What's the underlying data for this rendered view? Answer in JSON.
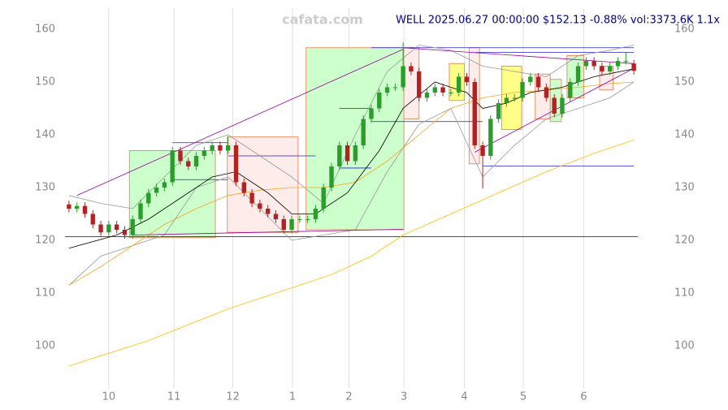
{
  "chart_data": {
    "type": "candlestick",
    "title": "WELL 2025.06.27 00:00:00 $152.13 -0.88% vol:3373.6K 1.1x",
    "watermark": "cafata.com",
    "up_color": "#2a9d2a",
    "down_color": "#b22222",
    "grid": true,
    "xlim": [
      -0.5,
      71.5
    ],
    "xticks": [
      {
        "value": 5.0,
        "label": "10"
      },
      {
        "value": 13.2,
        "label": "11"
      },
      {
        "value": 20.6,
        "label": "12"
      },
      {
        "value": 28.1,
        "label": "1"
      },
      {
        "value": 35.2,
        "label": "2"
      },
      {
        "value": 42.1,
        "label": "3"
      },
      {
        "value": 49.7,
        "label": "4"
      },
      {
        "value": 57.1,
        "label": "5"
      },
      {
        "value": 64.7,
        "label": "6"
      }
    ],
    "ylim": [
      92,
      164
    ],
    "yticks": [
      100,
      110,
      120,
      130,
      140,
      150,
      160
    ],
    "open": [
      126.8,
      126,
      126.5,
      125,
      123,
      121.5,
      123,
      122,
      121,
      124,
      127,
      129,
      130,
      131,
      137,
      135,
      134,
      136,
      137,
      138,
      137,
      138,
      131,
      129,
      127,
      126,
      125,
      124,
      122,
      124,
      124,
      124,
      126,
      130,
      134,
      138,
      135,
      138,
      143,
      145,
      148,
      149,
      149,
      153,
      152,
      147,
      148,
      149,
      148,
      148,
      151,
      150,
      138,
      136,
      143,
      146,
      147,
      147,
      150,
      151,
      149,
      147,
      144,
      147,
      150,
      153,
      154,
      153,
      152,
      153,
      154,
      153.5
    ],
    "high": [
      127.5,
      127.2,
      127.2,
      125.7,
      123.7,
      123.7,
      123.7,
      122.7,
      124.7,
      127.7,
      129.7,
      130.7,
      131.7,
      137.7,
      137.7,
      135.7,
      136.7,
      137.7,
      138.7,
      138.7,
      139.7,
      138.7,
      131.7,
      129.7,
      127.7,
      126.7,
      125.7,
      124.7,
      124.7,
      124.7,
      124.7,
      126.7,
      130.7,
      134.7,
      138.7,
      138.7,
      138.7,
      143.7,
      145.7,
      148.7,
      149.7,
      149.7,
      157.5,
      153.7,
      152.7,
      148.7,
      149.7,
      149.7,
      148.7,
      151.7,
      151.7,
      150.7,
      138.7,
      143.7,
      146.7,
      147.7,
      147.7,
      150.7,
      151.7,
      151.7,
      149.7,
      147.7,
      147.7,
      150.7,
      153.7,
      154.7,
      154.7,
      153.7,
      153.7,
      154.7,
      155.7,
      154.2
    ],
    "low": [
      125.3,
      125.3,
      124.3,
      122.3,
      120.8,
      120.8,
      121.3,
      120.3,
      120.3,
      123.3,
      126.3,
      128.3,
      129.3,
      130.3,
      134.3,
      133.3,
      133.3,
      135.3,
      136.3,
      136.3,
      136.3,
      130.3,
      128.3,
      126.3,
      125.3,
      124.3,
      123.3,
      121.3,
      121.3,
      123.3,
      123.3,
      123.3,
      125.3,
      129.3,
      133.3,
      134.3,
      134.3,
      137.3,
      142.3,
      144.3,
      147.3,
      148.3,
      148.3,
      151.3,
      146.3,
      146.3,
      147.3,
      147.3,
      147.3,
      147.3,
      149.3,
      137.3,
      129.8,
      135.3,
      142.3,
      145.3,
      146.3,
      146.3,
      149.3,
      148.3,
      146.3,
      143.3,
      143.3,
      146.3,
      149.3,
      152.3,
      152.3,
      151.3,
      151.3,
      152.3,
      153.3,
      151.4
    ],
    "close": [
      126,
      126.5,
      125,
      123,
      121.5,
      123,
      122,
      121,
      124,
      127,
      129,
      130,
      131,
      137,
      135,
      134,
      136,
      137,
      138,
      137,
      138,
      131,
      129,
      127,
      126,
      125,
      124,
      122,
      124,
      124,
      124,
      126,
      130,
      134,
      138,
      135,
      138,
      143,
      145,
      148,
      149,
      149,
      153,
      152,
      147,
      148,
      149,
      148,
      148,
      151,
      150,
      138,
      136,
      143,
      146,
      147,
      147,
      150,
      151,
      149,
      147,
      144,
      147,
      150,
      153,
      154,
      153,
      152,
      153,
      154,
      154,
      152.13
    ],
    "zones": [
      {
        "x": [
          7.6,
          18.4
        ],
        "y": [
          120.5,
          137
        ],
        "color": "#ccffcc"
      },
      {
        "x": [
          19.9,
          28.8
        ],
        "y": [
          121.5,
          139.6
        ],
        "color": "#fdecea"
      },
      {
        "x": [
          29.8,
          42.1
        ],
        "y": [
          122,
          156.5
        ],
        "color": "#ccffcc"
      },
      {
        "x": [
          42.1,
          44
        ],
        "y": [
          143,
          156.5
        ],
        "color": "#fdecea"
      },
      {
        "x": [
          47.8,
          49.7
        ],
        "y": [
          146.5,
          153.5
        ],
        "color": "#ffff88"
      },
      {
        "x": [
          50.3,
          51.6
        ],
        "y": [
          134.5,
          156.5
        ],
        "color": "#fdecea"
      },
      {
        "x": [
          54.4,
          56.9
        ],
        "y": [
          141,
          153
        ],
        "color": "#ffff88"
      },
      {
        "x": [
          58.6,
          60.5
        ],
        "y": [
          143,
          151.5
        ],
        "color": "#fdecea"
      },
      {
        "x": [
          60.5,
          61.9
        ],
        "y": [
          142.5,
          150.5
        ],
        "color": "#ccffcc"
      },
      {
        "x": [
          62.6,
          64.7
        ],
        "y": [
          147,
          155
        ],
        "color": "#ccffcc"
      },
      {
        "x": [
          66.7,
          68.4
        ],
        "y": [
          148.5,
          153
        ],
        "color": "#fdecea"
      }
    ],
    "levels": [
      {
        "x": [
          13,
          20
        ],
        "y": 138.5
      },
      {
        "x": [
          13,
          20
        ],
        "y": 131.5
      },
      {
        "x": [
          20,
          31
        ],
        "y": 136
      },
      {
        "x": [
          34,
          38
        ],
        "y": 145
      },
      {
        "x": [
          34,
          38
        ],
        "y": 133.7
      },
      {
        "x": [
          38,
          52
        ],
        "y": 142.5
      },
      {
        "x": [
          38,
          71
        ],
        "y": 156.5
      },
      {
        "x": [
          51,
          71
        ],
        "y": 155.6
      },
      {
        "x": [
          52,
          71
        ],
        "y": 134.1
      },
      {
        "x": [
          -0.5,
          71.5
        ],
        "y": 120.7
      }
    ],
    "level_color": "#2222cc",
    "lines": [
      {
        "color": "#999999",
        "x": [
          0,
          4,
          8,
          12,
          16,
          20,
          24,
          28,
          32,
          36,
          40,
          44,
          48,
          52,
          56,
          60,
          64,
          68,
          71
        ],
        "y": [
          128.5,
          127,
          126,
          132,
          138,
          140,
          136,
          132,
          127,
          140,
          152,
          157,
          156,
          153,
          152,
          151,
          155,
          156,
          157
        ]
      },
      {
        "color": "#999999",
        "x": [
          0,
          4,
          8,
          12,
          16,
          20,
          24,
          28,
          32,
          36,
          40,
          44,
          48,
          52,
          56,
          60,
          64,
          68,
          71
        ],
        "y": [
          111.5,
          117,
          119,
          121,
          130,
          132,
          126,
          120,
          121,
          122,
          133,
          142,
          145,
          132,
          138,
          143,
          145,
          147,
          150
        ]
      },
      {
        "color": "#ffc000",
        "x": [
          0,
          10,
          20,
          28,
          33,
          38,
          42,
          48,
          54,
          60,
          66,
          71
        ],
        "y": [
          96.2,
          101,
          107,
          111,
          113.5,
          117,
          121,
          125,
          129,
          133,
          136.5,
          139
        ]
      },
      {
        "color": "#f5a623",
        "x": [
          0,
          4,
          8,
          12,
          16,
          20,
          24,
          28,
          32,
          36,
          40,
          44,
          48,
          52,
          56,
          60,
          64,
          68,
          71
        ],
        "y": [
          111.5,
          115,
          119,
          123,
          126,
          128.5,
          129.5,
          130,
          130,
          131,
          135,
          140,
          145,
          147,
          148,
          148.5,
          149,
          149.7,
          150
        ]
      },
      {
        "color": "#000000",
        "x": [
          0,
          6,
          10,
          14,
          18,
          21,
          25,
          28,
          31,
          35,
          39,
          42,
          46,
          50,
          52,
          55,
          58,
          62,
          66,
          71
        ],
        "y": [
          118.5,
          121,
          124,
          128,
          132,
          133,
          129,
          125,
          125,
          129,
          137,
          145,
          150,
          148,
          145,
          146,
          148,
          149,
          151,
          152.5
        ]
      },
      {
        "color": "#990099",
        "x": [
          1,
          42
        ],
        "y": [
          128.5,
          156.2
        ]
      },
      {
        "color": "#990099",
        "x": [
          8,
          42
        ],
        "y": [
          121,
          122.1
        ]
      },
      {
        "color": "#990099",
        "x": [
          42,
          71
        ],
        "y": [
          156.5,
          153.5
        ]
      },
      {
        "color": "#990099",
        "x": [
          51,
          71
        ],
        "y": [
          136.7,
          152.6
        ]
      }
    ]
  }
}
